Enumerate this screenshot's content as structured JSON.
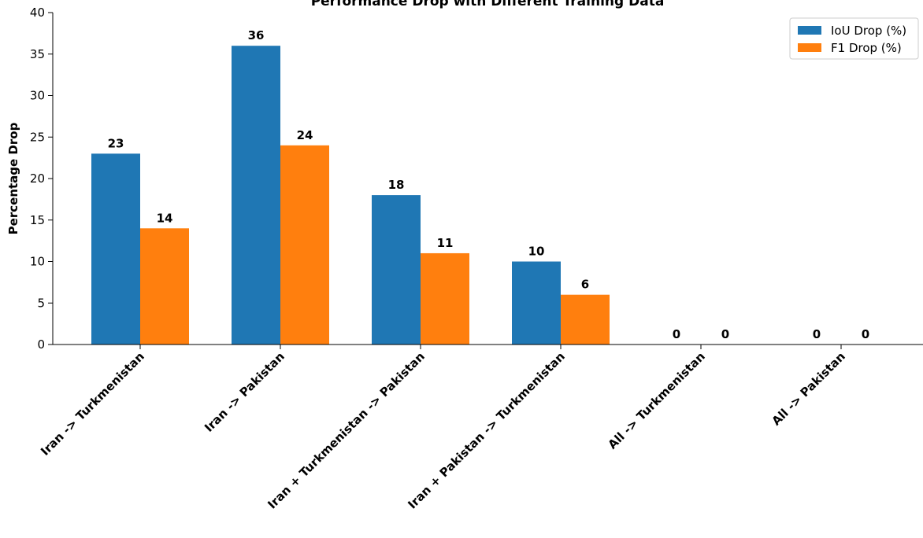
{
  "chart_data": {
    "type": "bar",
    "title": "Performance Drop with Different Training Data",
    "xlabel": "",
    "ylabel": "Percentage Drop",
    "ylim": [
      0,
      40
    ],
    "yticks": [
      0,
      5,
      10,
      15,
      20,
      25,
      30,
      35,
      40
    ],
    "categories": [
      "Iran -> Turkmenistan",
      "Iran -> Pakistan",
      "Iran + Turkmenistan -> Pakistan",
      "Iran + Pakistan -> Turkmenistan",
      "All -> Turkmenistan",
      "All -> Pakistan"
    ],
    "series": [
      {
        "name": "IoU Drop (%)",
        "color": "#1f77b4",
        "values": [
          23,
          36,
          18,
          10,
          0,
          0
        ]
      },
      {
        "name": "F1 Drop (%)",
        "color": "#ff7f0e",
        "values": [
          14,
          24,
          11,
          6,
          0,
          0
        ]
      }
    ],
    "grid": false,
    "legend_position": "top-right",
    "data_labels": true
  }
}
